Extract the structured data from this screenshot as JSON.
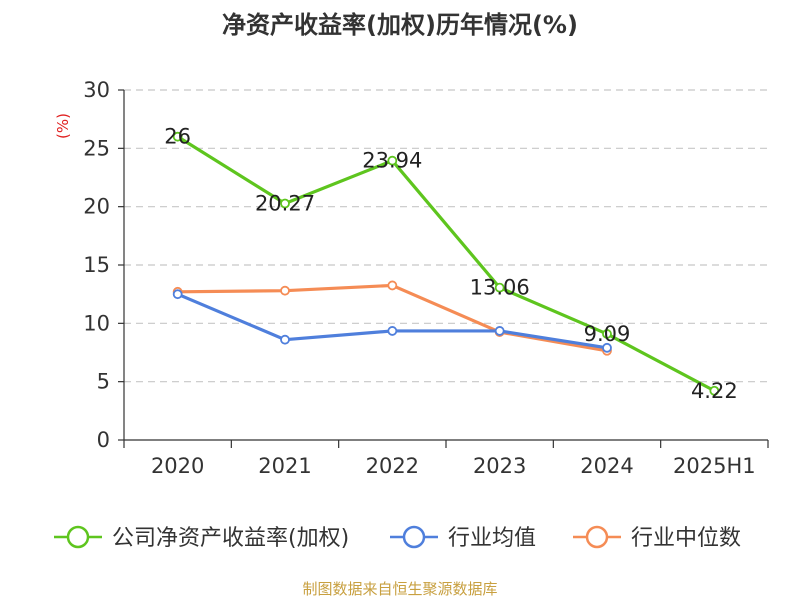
{
  "chart_data": {
    "type": "line",
    "title": "净资产收益率(加权)历年情况(%)",
    "ylabel": "(%)",
    "categories": [
      "2020",
      "2021",
      "2022",
      "2023",
      "2024",
      "2025H1"
    ],
    "yticks": [
      0,
      5,
      10,
      15,
      20,
      25,
      30
    ],
    "ylim": [
      0,
      30
    ],
    "grid": true,
    "legend_position": "bottom",
    "series": [
      {
        "name": "公司净资产收益率(加权)",
        "color": "#5ec51e",
        "values": [
          26,
          20.27,
          23.94,
          13.06,
          9.09,
          4.22
        ],
        "labels": [
          "26",
          "20.27",
          "23.94",
          "13.06",
          "9.09",
          "4.22"
        ]
      },
      {
        "name": "行业均值",
        "color": "#4f7fdc",
        "values": [
          12.5,
          8.6,
          9.35,
          9.35,
          7.9,
          null
        ]
      },
      {
        "name": "行业中位数",
        "color": "#f58c55",
        "values": [
          12.7,
          12.8,
          13.25,
          9.25,
          7.65,
          null
        ]
      }
    ],
    "ylabel_color": "#e02020"
  },
  "footer": {
    "text": "制图数据来自恒生聚源数据库",
    "color": "#c8a040"
  }
}
